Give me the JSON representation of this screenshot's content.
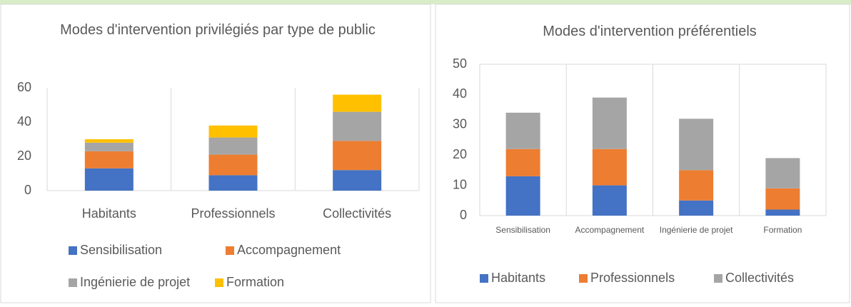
{
  "chart_data": [
    {
      "type": "stacked_bar",
      "title": "Modes d'intervention privilégiés par type de public",
      "categories": [
        "Habitants",
        "Professionnels",
        "Collectivités"
      ],
      "series": [
        {
          "name": "Sensibilisation",
          "color": "#4472c4",
          "values": [
            13,
            9,
            12
          ]
        },
        {
          "name": "Accompagnement",
          "color": "#ed7d31",
          "values": [
            10,
            12,
            17
          ]
        },
        {
          "name": "Ingénierie de projet",
          "color": "#a5a5a5",
          "values": [
            5,
            10,
            17
          ]
        },
        {
          "name": "Formation",
          "color": "#ffc000",
          "values": [
            2,
            7,
            10
          ]
        }
      ],
      "ylim": [
        0,
        60
      ],
      "yticks": [
        0,
        20,
        40,
        60
      ],
      "legend": "bottom"
    },
    {
      "type": "stacked_bar",
      "title": "Modes d'intervention préférentiels",
      "categories": [
        "Sensibilisation",
        "Accompagnement",
        "Ingénierie de projet",
        "Formation"
      ],
      "series": [
        {
          "name": "Habitants",
          "color": "#4472c4",
          "values": [
            13,
            10,
            5,
            2
          ]
        },
        {
          "name": "Professionnels",
          "color": "#ed7d31",
          "values": [
            9,
            12,
            10,
            7
          ]
        },
        {
          "name": "Collectivités",
          "color": "#a5a5a5",
          "values": [
            12,
            17,
            17,
            10
          ]
        }
      ],
      "ylim": [
        0,
        50
      ],
      "yticks": [
        0,
        10,
        20,
        30,
        40,
        50
      ],
      "legend": "bottom"
    }
  ]
}
